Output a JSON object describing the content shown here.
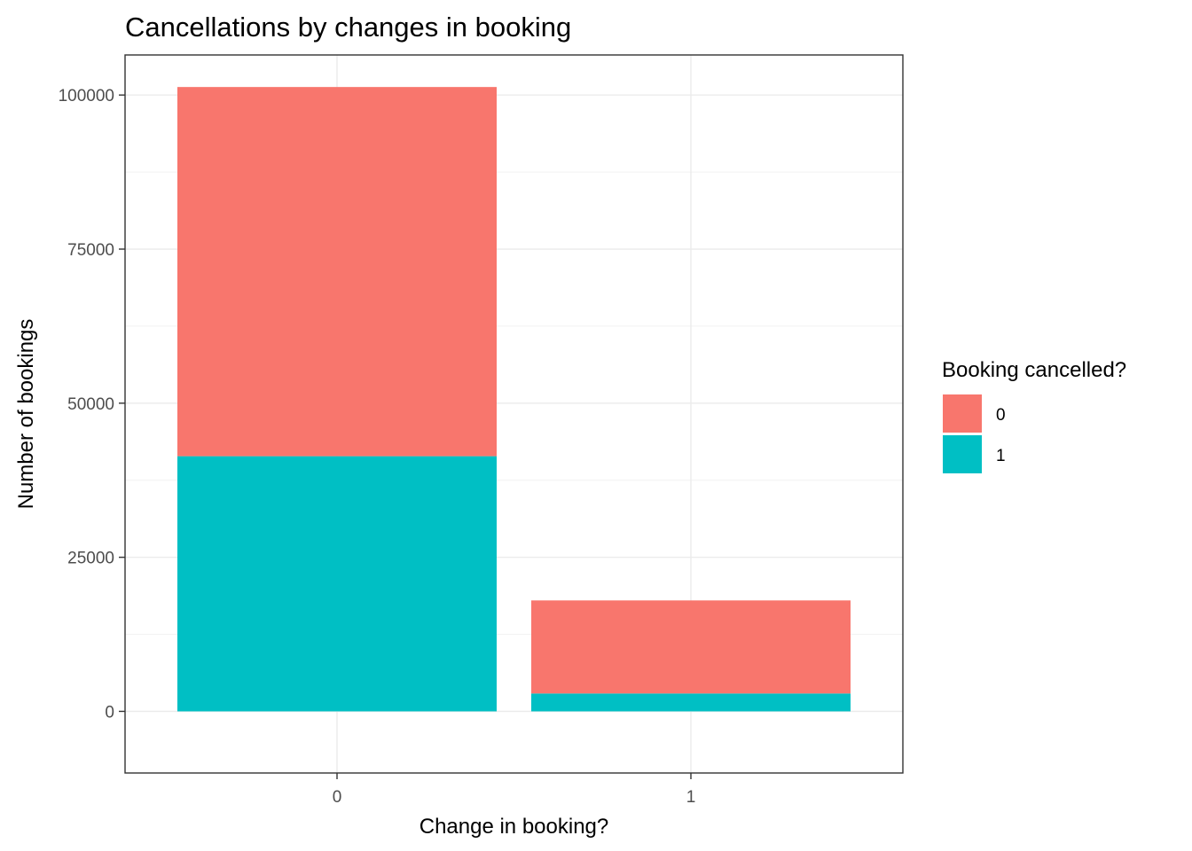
{
  "chart_data": {
    "type": "bar",
    "stacked": true,
    "title": "Cancellations by changes in booking",
    "xlabel": "Change in booking?",
    "ylabel": "Number of bookings",
    "categories": [
      "0",
      "1"
    ],
    "ylim": [
      -10000,
      106500
    ],
    "yticks": [
      0,
      25000,
      50000,
      75000,
      100000
    ],
    "ytick_labels": [
      "0",
      "25000",
      "50000",
      "75000",
      "100000"
    ],
    "grid": true,
    "legend": {
      "title": "Booking cancelled?",
      "position": "right"
    },
    "series": [
      {
        "name": "0",
        "color": "#F8766D",
        "values": [
          59900,
          15100
        ]
      },
      {
        "name": "1",
        "color": "#00BFC4",
        "values": [
          41400,
          2900
        ]
      }
    ]
  }
}
